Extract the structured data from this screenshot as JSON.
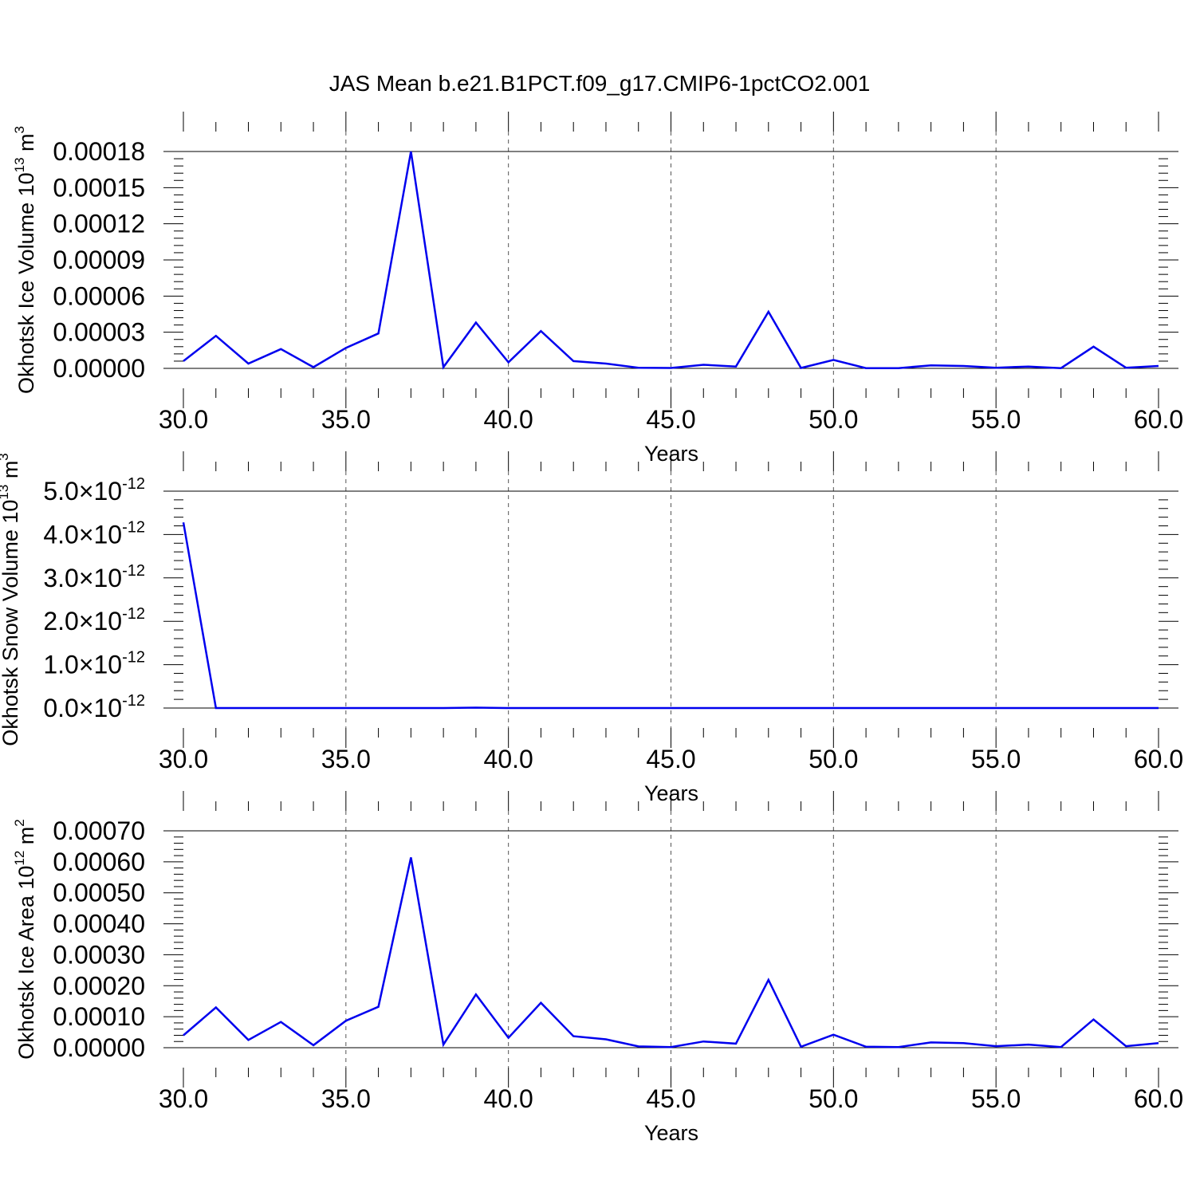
{
  "title": "JAS Mean b.e21.B1PCT.f09_g17.CMIP6-1pctCO2.001",
  "colors": {
    "line": "#0000ee",
    "axis": "#000000",
    "grid": "#555555"
  },
  "chart_data": [
    {
      "type": "line",
      "xlabel": "Years",
      "ylabel": {
        "main": "Okhotsk Ice Volume 10",
        "exp": "13",
        "unit": " m",
        "unit_exp": "3"
      },
      "xlim": [
        30,
        60
      ],
      "ylim": [
        0,
        0.00018
      ],
      "xticks": [
        30,
        35,
        40,
        45,
        50,
        55,
        60
      ],
      "xtick_labels": [
        "30.0",
        "35.0",
        "40.0",
        "45.0",
        "50.0",
        "55.0",
        "60.0"
      ],
      "yticks": [
        0,
        3e-05,
        6e-05,
        9e-05,
        0.00012,
        0.00015,
        0.00018
      ],
      "ytick_labels": [
        "0.00000",
        "0.00003",
        "0.00006",
        "0.00009",
        "0.00012",
        "0.00015",
        "0.00018"
      ],
      "x": [
        30,
        31,
        32,
        33,
        34,
        35,
        36,
        37,
        38,
        39,
        40,
        41,
        42,
        43,
        44,
        45,
        46,
        47,
        48,
        49,
        50,
        51,
        52,
        53,
        54,
        55,
        56,
        57,
        58,
        59,
        60
      ],
      "y": [
        6e-06,
        2.7e-05,
        4e-06,
        1.6e-05,
        1e-06,
        1.7e-05,
        2.9e-05,
        0.00018,
        1e-06,
        3.8e-05,
        5e-06,
        3.1e-05,
        6e-06,
        4e-06,
        5e-07,
        3e-07,
        3e-06,
        1.5e-06,
        4.7e-05,
        3e-07,
        7e-06,
        2e-07,
        2e-07,
        2.5e-06,
        2e-06,
        5e-07,
        1.5e-06,
        2e-07,
        1.8e-05,
        5e-07,
        2e-06
      ],
      "grid": "vertical dashed"
    },
    {
      "type": "line",
      "xlabel": "Years",
      "ylabel": {
        "main": "Okhotsk Snow Volume 10",
        "exp": "13",
        "unit": " m",
        "unit_exp": "3"
      },
      "xlim": [
        30,
        60
      ],
      "ylim": [
        0,
        5e-12
      ],
      "xticks": [
        30,
        35,
        40,
        45,
        50,
        55,
        60
      ],
      "xtick_labels": [
        "30.0",
        "35.0",
        "40.0",
        "45.0",
        "50.0",
        "55.0",
        "60.0"
      ],
      "yticks": [
        0,
        1e-12,
        2e-12,
        3e-12,
        4e-12,
        5e-12
      ],
      "ytick_mantissas": [
        "0.0",
        "1.0",
        "2.0",
        "3.0",
        "4.0",
        "5.0"
      ],
      "ytick_times": "×10",
      "ytick_exponent": "-12",
      "x": [
        30,
        31,
        32,
        33,
        34,
        35,
        36,
        37,
        38,
        39,
        40,
        41,
        42,
        43,
        44,
        45,
        46,
        47,
        48,
        49,
        50,
        51,
        52,
        53,
        54,
        55,
        56,
        57,
        58,
        59,
        60
      ],
      "y": [
        4.28e-12,
        0,
        0,
        0,
        0,
        0,
        0,
        0,
        0,
        1e-14,
        0,
        0,
        0,
        0,
        0,
        0,
        0,
        0,
        0,
        0,
        0,
        0,
        0,
        0,
        0,
        0,
        0,
        0,
        0,
        0,
        0
      ],
      "grid": "vertical dashed"
    },
    {
      "type": "line",
      "xlabel": "Years",
      "ylabel": {
        "main": "Okhotsk Ice Area 10",
        "exp": "12",
        "unit": " m",
        "unit_exp": "2"
      },
      "xlim": [
        30,
        60
      ],
      "ylim": [
        0,
        0.0007
      ],
      "xticks": [
        30,
        35,
        40,
        45,
        50,
        55,
        60
      ],
      "xtick_labels": [
        "30.0",
        "35.0",
        "40.0",
        "45.0",
        "50.0",
        "55.0",
        "60.0"
      ],
      "yticks": [
        0,
        0.0001,
        0.0002,
        0.0003,
        0.0004,
        0.0005,
        0.0006,
        0.0007
      ],
      "ytick_labels": [
        "0.00000",
        "0.00010",
        "0.00020",
        "0.00030",
        "0.00040",
        "0.00050",
        "0.00060",
        "0.00070"
      ],
      "x": [
        30,
        31,
        32,
        33,
        34,
        35,
        36,
        37,
        38,
        39,
        40,
        41,
        42,
        43,
        44,
        45,
        46,
        47,
        48,
        49,
        50,
        51,
        52,
        53,
        54,
        55,
        56,
        57,
        58,
        59,
        60
      ],
      "y": [
        4e-05,
        0.00013,
        2.5e-05,
        8.3e-05,
        8e-06,
        8.7e-05,
        0.000132,
        0.000614,
        1e-05,
        0.000172,
        3.2e-05,
        0.000145,
        3.7e-05,
        2.7e-05,
        4e-06,
        2e-06,
        2e-05,
        1.3e-05,
        0.000219,
        3e-06,
        4.2e-05,
        3e-06,
        2e-06,
        1.7e-05,
        1.5e-05,
        5e-06,
        1e-05,
        2e-06,
        9.1e-05,
        5e-06,
        1.5e-05
      ],
      "grid": "vertical dashed"
    }
  ]
}
